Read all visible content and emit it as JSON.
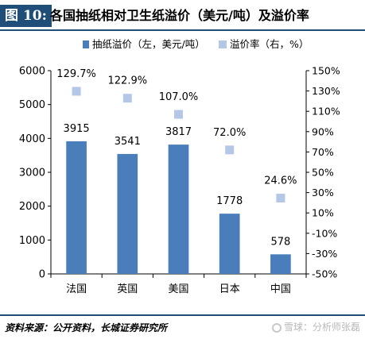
{
  "figure": {
    "tag": "图 10:",
    "title": "各国抽纸相对卫生纸溢价（美元/吨）及溢价率"
  },
  "source": "资料来源：公开资料，长城证券研究所",
  "watermark": "雪球：分析师张磊",
  "colors": {
    "bar": "#4a7ebb",
    "marker": "#b4c7e7",
    "title_bg": "#1f4e79"
  },
  "chart_data": {
    "type": "bar",
    "categories": [
      "法国",
      "英国",
      "美国",
      "日本",
      "中国"
    ],
    "series": [
      {
        "name": "抽纸溢价（左，美元/吨）",
        "axis": "left",
        "kind": "bar",
        "values": [
          3915,
          3541,
          3817,
          1778,
          578
        ],
        "labels": [
          "3915",
          "3541",
          "3817",
          "1778",
          "578"
        ]
      },
      {
        "name": "溢价率（右，%）",
        "axis": "right",
        "kind": "scatter",
        "values": [
          129.7,
          122.9,
          107.0,
          72.0,
          24.6
        ],
        "labels": [
          "129.7%",
          "122.9%",
          "107.0%",
          "72.0%",
          "24.6%"
        ]
      }
    ],
    "y_left": {
      "ylim": [
        0,
        6000
      ],
      "ticks": [
        0,
        1000,
        2000,
        3000,
        4000,
        5000,
        6000
      ],
      "tick_labels": [
        "0",
        "1000",
        "2000",
        "3000",
        "4000",
        "5000",
        "6000"
      ]
    },
    "y_right": {
      "ylim": [
        -50,
        150
      ],
      "ticks": [
        -50,
        -30,
        -10,
        10,
        30,
        50,
        70,
        90,
        110,
        130,
        150
      ],
      "tick_labels": [
        "-50%",
        "-30%",
        "-10%",
        "10%",
        "30%",
        "50%",
        "70%",
        "90%",
        "110%",
        "130%",
        "150%"
      ]
    },
    "legend_position": "top",
    "grid": false
  }
}
